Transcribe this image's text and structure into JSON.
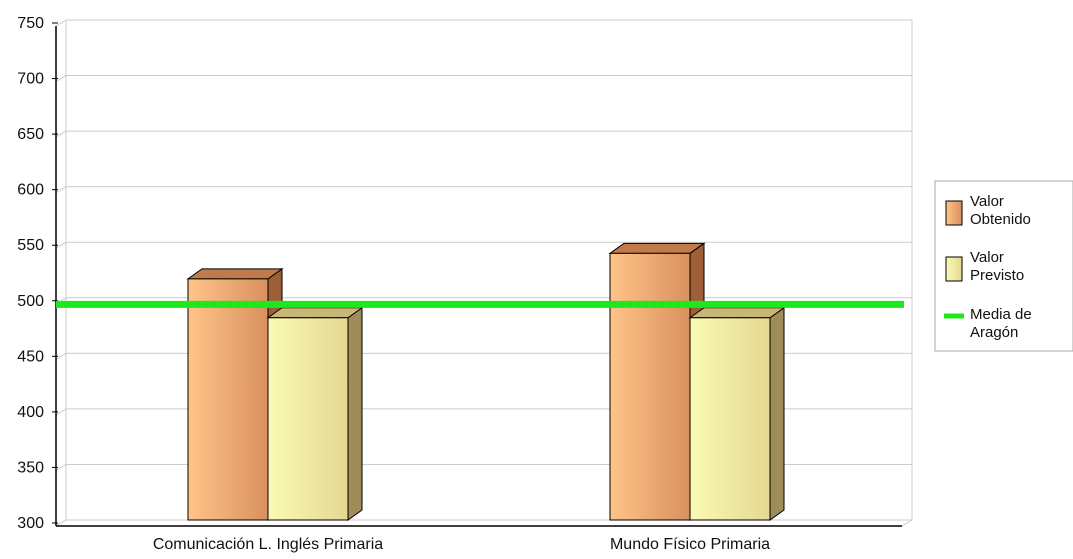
{
  "chart_data": {
    "type": "bar",
    "categories": [
      "Comunicación L. Inglés Primaria",
      "Mundo Físico Primaria"
    ],
    "series": [
      {
        "name": "Valor Obtenido",
        "values": [
          517,
          540
        ]
      },
      {
        "name": "Valor Previsto",
        "values": [
          482,
          482
        ]
      }
    ],
    "reference_line": {
      "name": "Media de Aragón",
      "value": 495
    },
    "ylim": [
      300,
      750
    ],
    "yticks": [
      300,
      350,
      400,
      450,
      500,
      550,
      600,
      650,
      700,
      750
    ],
    "grid": true,
    "legend_position": "right",
    "title": "",
    "xlabel": "",
    "ylabel": "",
    "legend": {
      "obtained_lines": [
        "Valor",
        "Obtenido"
      ],
      "expected_lines": [
        "Valor",
        "Previsto"
      ],
      "average_lines": [
        "Media de",
        "Aragón"
      ]
    },
    "colors": {
      "obtained_light": "#ffc489",
      "obtained_dark": "#d9905e",
      "obtained_top": "#c07a4c",
      "obtained_side": "#9e5e38",
      "expected_light": "#fafab4",
      "expected_dark": "#e4d892",
      "expected_top": "#c8b878",
      "expected_side": "#9e8c5a",
      "average": "#1ce81c",
      "grid": "#cccccc",
      "axis": "#000000"
    }
  }
}
